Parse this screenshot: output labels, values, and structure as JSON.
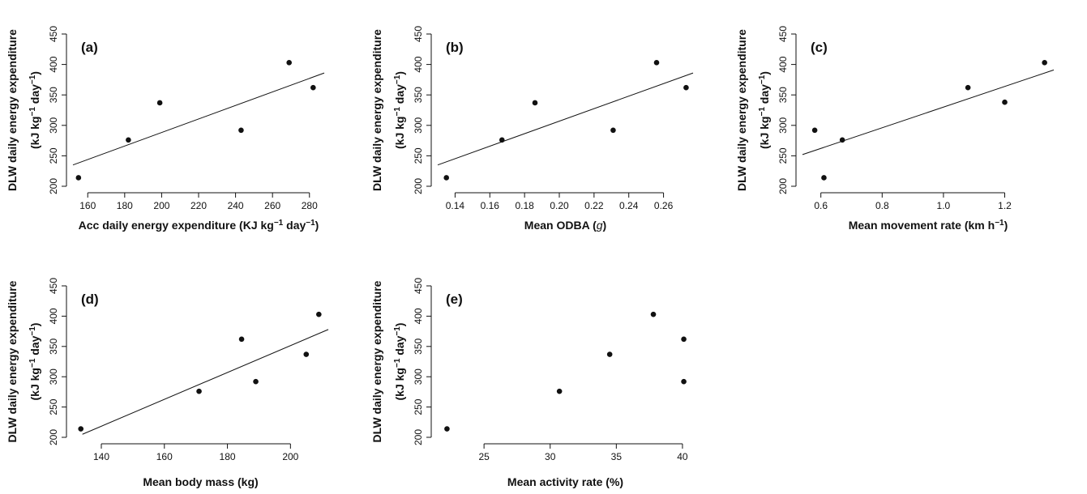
{
  "chart_data": [
    {
      "type": "scatter",
      "panel_label": "(a)",
      "xlabel": {
        "main": "Acc daily energy expenditure (KJ kg",
        "sup1": "−1",
        "mid": " day",
        "sup2": "−1",
        "end": ")"
      },
      "ylabel": {
        "line1": "DLW daily energy expenditure",
        "line2_main": "(kJ kg",
        "sup1": "−1",
        "mid": " day",
        "sup2": "−1",
        "end": ")"
      },
      "xlim": [
        152,
        288
      ],
      "ylim": [
        200,
        450
      ],
      "xticks": [
        160,
        180,
        200,
        220,
        240,
        260,
        280
      ],
      "yticks": [
        200,
        250,
        300,
        350,
        400,
        450
      ],
      "x": [
        155,
        182,
        199,
        243,
        269,
        282
      ],
      "y": [
        214,
        276,
        337,
        292,
        403,
        362
      ],
      "fit_line": {
        "x": [
          152,
          288
        ],
        "y": [
          235,
          386
        ]
      }
    },
    {
      "type": "scatter",
      "panel_label": "(b)",
      "xlabel": {
        "main": "Mean ODBA (",
        "italic": "g",
        "end": ")"
      },
      "ylabel": {
        "line1": "DLW daily energy expenditure",
        "line2_main": "(kJ kg",
        "sup1": "−1",
        "mid": " day",
        "sup2": "−1",
        "end": ")"
      },
      "xlim": [
        0.13,
        0.277
      ],
      "ylim": [
        200,
        450
      ],
      "xticks": [
        0.14,
        0.16,
        0.18,
        0.2,
        0.22,
        0.24,
        0.26
      ],
      "xtick_labels": [
        "0.14",
        "0.16",
        "0.18",
        "0.20",
        "0.22",
        "0.24",
        "0.26"
      ],
      "yticks": [
        200,
        250,
        300,
        350,
        400,
        450
      ],
      "x": [
        0.135,
        0.167,
        0.186,
        0.231,
        0.256,
        0.273
      ],
      "y": [
        214,
        276,
        337,
        292,
        403,
        362
      ],
      "fit_line": {
        "x": [
          0.13,
          0.277
        ],
        "y": [
          235,
          386
        ]
      }
    },
    {
      "type": "scatter",
      "panel_label": "(c)",
      "xlabel": {
        "main": "Mean movement rate (km h",
        "sup1": "−1",
        "end": ")"
      },
      "ylabel": {
        "line1": "DLW daily energy expenditure",
        "line2_main": "(kJ kg",
        "sup1": "−1",
        "mid": " day",
        "sup2": "−1",
        "end": ")"
      },
      "xlim": [
        0.54,
        1.36
      ],
      "ylim": [
        200,
        450
      ],
      "xticks": [
        0.6,
        0.8,
        1.0,
        1.2
      ],
      "xtick_labels": [
        "0.6",
        "0.8",
        "1.0",
        "1.2"
      ],
      "yticks": [
        200,
        250,
        300,
        350,
        400,
        450
      ],
      "x": [
        0.58,
        0.61,
        0.67,
        1.08,
        1.2,
        1.33
      ],
      "y": [
        292,
        214,
        276,
        362,
        338,
        403
      ],
      "fit_line": {
        "x": [
          0.54,
          1.36
        ],
        "y": [
          252,
          391
        ]
      }
    },
    {
      "type": "scatter",
      "panel_label": "(d)",
      "xlabel": {
        "main": "Mean body mass (kg)"
      },
      "ylabel": {
        "line1": "DLW daily energy expenditure",
        "line2_main": "(kJ kg",
        "sup1": "−1",
        "mid": " day",
        "sup2": "−1",
        "end": ")"
      },
      "xlim": [
        131,
        212
      ],
      "ylim": [
        200,
        450
      ],
      "xticks": [
        140,
        160,
        180,
        200
      ],
      "yticks": [
        200,
        250,
        300,
        350,
        400,
        450
      ],
      "x": [
        133.5,
        171,
        184.5,
        189,
        205,
        209
      ],
      "y": [
        214,
        276,
        362,
        292,
        337,
        403
      ],
      "fit_line": {
        "x": [
          134,
          212
        ],
        "y": [
          205,
          378
        ]
      }
    },
    {
      "type": "scatter",
      "panel_label": "(e)",
      "xlabel": {
        "main": "Mean activity rate (%)"
      },
      "ylabel": {
        "line1": "DLW daily energy expenditure",
        "line2_main": "(kJ kg",
        "sup1": "−1",
        "mid": " day",
        "sup2": "−1",
        "end": ")"
      },
      "xlim": [
        21.5,
        40.8
      ],
      "ylim": [
        200,
        450
      ],
      "xticks": [
        25,
        30,
        35,
        40
      ],
      "yticks": [
        200,
        250,
        300,
        350,
        400,
        450
      ],
      "x": [
        22.2,
        30.7,
        34.5,
        37.8,
        40.1,
        40.1
      ],
      "y": [
        214,
        276,
        337,
        403,
        362,
        292
      ]
    }
  ]
}
